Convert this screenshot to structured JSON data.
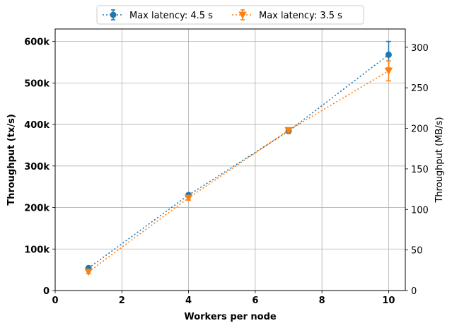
{
  "chart_data": {
    "type": "line",
    "xlabel": "Workers per node",
    "ylabel": "Throughput (tx/s)",
    "y2label": "Throughput (MB/s)",
    "xlim": [
      0,
      10.5
    ],
    "ylim": [
      0,
      630000
    ],
    "y2lim": [
      0,
      322.5
    ],
    "xticks": [
      0,
      2,
      4,
      6,
      8,
      10
    ],
    "xtick_labels": [
      "0",
      "2",
      "4",
      "6",
      "8",
      "10"
    ],
    "yticks": [
      0,
      100000,
      200000,
      300000,
      400000,
      500000,
      600000
    ],
    "ytick_labels": [
      "0",
      "100k",
      "200k",
      "300k",
      "400k",
      "500k",
      "600k"
    ],
    "y2ticks": [
      0,
      50,
      100,
      150,
      200,
      250,
      300
    ],
    "y2tick_labels": [
      "0",
      "50",
      "100",
      "150",
      "200",
      "250",
      "300"
    ],
    "grid": true,
    "legend_position": "top-center",
    "x": [
      1,
      4,
      7,
      10
    ],
    "series": [
      {
        "name": "Max latency: 4.5 s",
        "color": "#1f77b4",
        "marker": "circle",
        "values": [
          54000,
          230000,
          384000,
          568000
        ],
        "errors": [
          3000,
          4000,
          4000,
          32000
        ]
      },
      {
        "name": "Max latency: 3.5 s",
        "color": "#ff7f0e",
        "marker": "triangle-down",
        "values": [
          45000,
          223000,
          386000,
          529000
        ],
        "errors": [
          4000,
          5000,
          4000,
          24000
        ]
      }
    ]
  }
}
